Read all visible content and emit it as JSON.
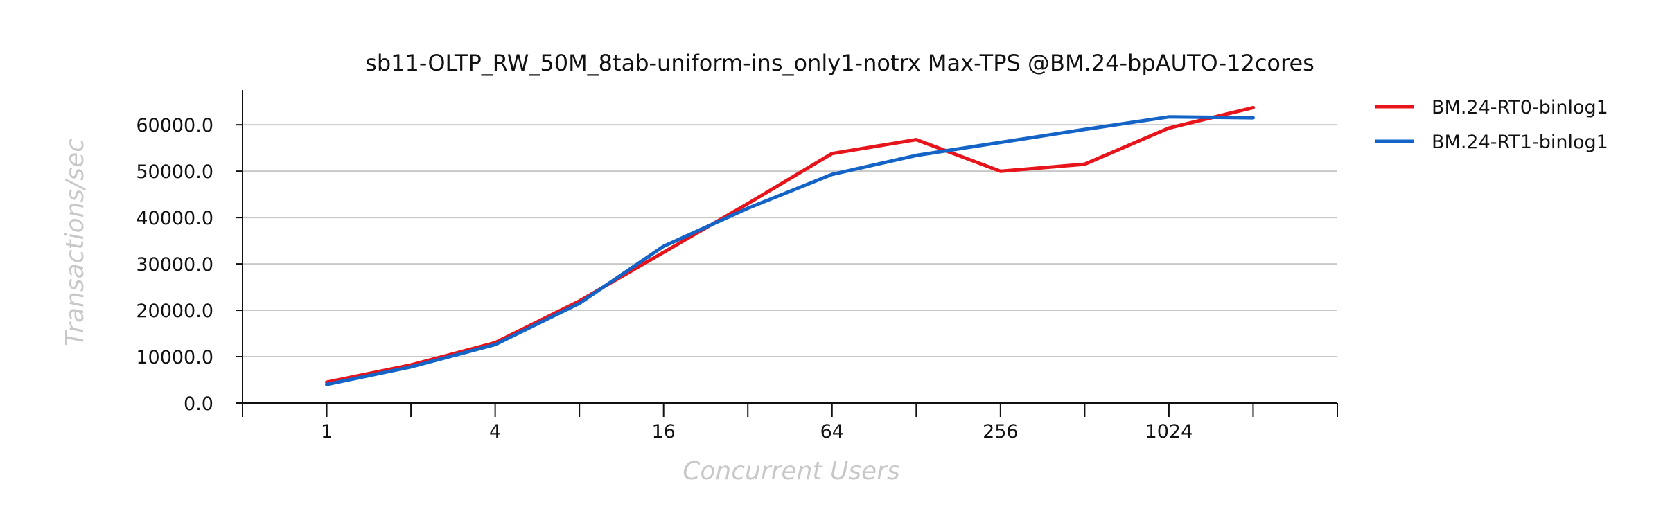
{
  "chart_data": {
    "type": "line",
    "title": "sb11-OLTP_RW_50M_8tab-uniform-ins_only1-notrx Max-TPS @BM.24-bpAUTO-12cores",
    "xlabel": "Concurrent Users",
    "ylabel": "Transactions/sec",
    "x": [
      1,
      2,
      4,
      8,
      16,
      32,
      64,
      128,
      256,
      512,
      1024,
      2048
    ],
    "x_scale": "log2",
    "x_tick_labels": [
      "1",
      "4",
      "16",
      "64",
      "256",
      "1024"
    ],
    "x_tick_values": [
      1,
      4,
      16,
      64,
      256,
      1024
    ],
    "xlim": [
      0.5,
      4096
    ],
    "y_tick_labels": [
      "0.0",
      "10000.0",
      "20000.0",
      "30000.0",
      "40000.0",
      "50000.0",
      "60000.0"
    ],
    "y_tick_values": [
      0,
      10000,
      20000,
      30000,
      40000,
      50000,
      60000
    ],
    "ylim": [
      0,
      66000
    ],
    "grid": "y",
    "legend_position": "right",
    "series": [
      {
        "name": "BM.24-RT0-binlog1",
        "color": "#e8141c",
        "values": [
          4500,
          8200,
          13000,
          22000,
          32500,
          43000,
          53800,
          56800,
          50000,
          51500,
          59300,
          63700
        ]
      },
      {
        "name": "BM.24-RT1-binlog1",
        "color": "#1464c8",
        "values": [
          4000,
          7800,
          12600,
          21500,
          33800,
          42000,
          49300,
          53400,
          56200,
          59000,
          61700,
          61500
        ]
      }
    ]
  }
}
